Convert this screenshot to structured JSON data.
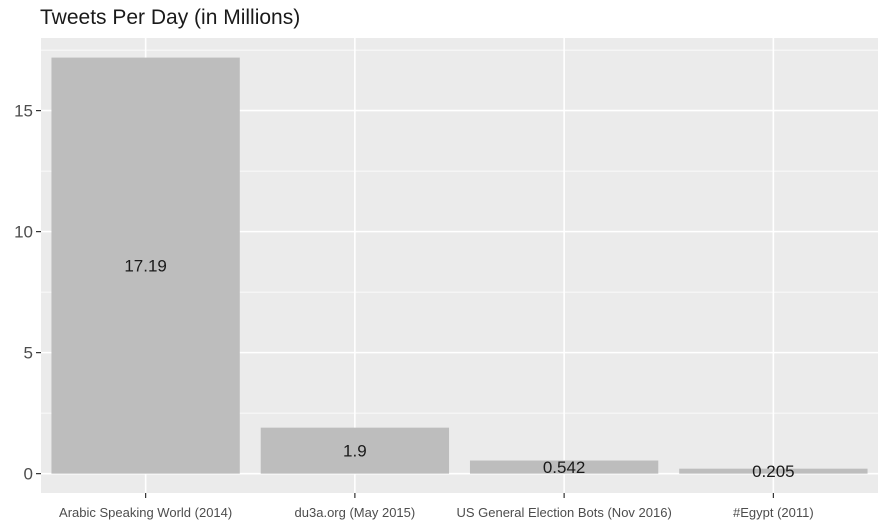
{
  "chart_data": {
    "type": "bar",
    "title": "Tweets Per Day (in Millions)",
    "categories": [
      "Arabic Speaking World (2014)",
      "du3a.org (May 2015)",
      "US General Election Bots (Nov 2016)",
      "#Egypt (2011)"
    ],
    "values": [
      17.19,
      1.9,
      0.542,
      0.205
    ],
    "data_labels": [
      "17.19",
      "1.9",
      "0.542",
      "0.205"
    ],
    "yticks": [
      0,
      5,
      10,
      15
    ],
    "ytick_labels": [
      "0",
      "5",
      "10",
      "15"
    ],
    "ylim": [
      -0.8,
      18
    ],
    "xlabel": "",
    "ylabel": "",
    "grid": true,
    "colors": {
      "bar": "#bdbdbd",
      "panel": "#ebebeb",
      "grid": "#ffffff",
      "tick": "#333333"
    }
  }
}
